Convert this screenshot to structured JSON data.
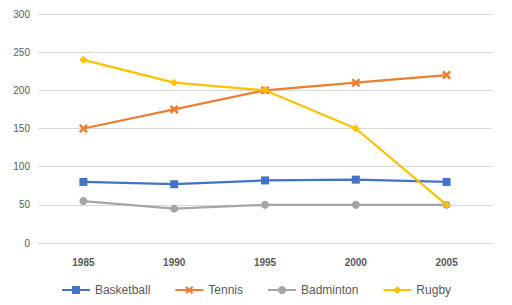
{
  "chart_data": {
    "type": "line",
    "categories": [
      "1985",
      "1990",
      "1995",
      "2000",
      "2005"
    ],
    "series": [
      {
        "name": "Basketball",
        "color": "#4472c4",
        "marker": "square",
        "values": [
          80,
          77,
          82,
          83,
          80
        ]
      },
      {
        "name": "Tennis",
        "color": "#ed7d31",
        "marker": "x",
        "values": [
          150,
          175,
          200,
          210,
          220
        ]
      },
      {
        "name": "Badminton",
        "color": "#a5a5a5",
        "marker": "circle",
        "values": [
          55,
          45,
          50,
          50,
          50
        ]
      },
      {
        "name": "Rugby",
        "color": "#ffc000",
        "marker": "diamond",
        "values": [
          240,
          210,
          200,
          150,
          50
        ]
      }
    ],
    "ylim": [
      0,
      300
    ],
    "yticks": [
      0,
      50,
      100,
      150,
      200,
      250,
      300
    ],
    "grid": true,
    "legend": "bottom"
  }
}
